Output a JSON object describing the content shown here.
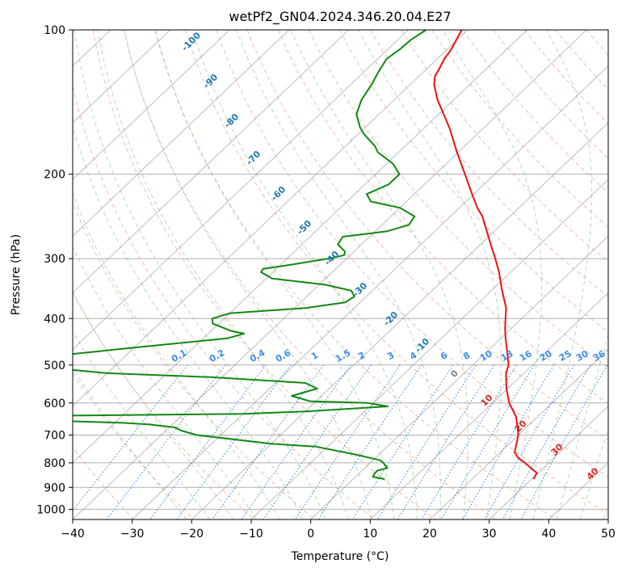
{
  "chart_data": {
    "type": "line",
    "title": "wetPf2_GN04.2024.346.20.04.E27",
    "xlabel": "Temperature (°C)",
    "ylabel": "Pressure (hPa)",
    "xlim": [
      -40,
      50
    ],
    "ylim": [
      1050,
      100
    ],
    "yscale": "log",
    "grid": true,
    "x_ticks": [
      -40,
      -30,
      -20,
      -10,
      0,
      10,
      20,
      30,
      40,
      50
    ],
    "y_ticks": [
      100,
      200,
      300,
      400,
      500,
      600,
      700,
      800,
      900,
      1000
    ],
    "dry_adiabat_labels": [
      "-100",
      "-90",
      "-80",
      "-70",
      "-60",
      "-50",
      "-40",
      "-30",
      "-20",
      "-10",
      "0",
      "10",
      "20",
      "30",
      "40"
    ],
    "mixing_ratio_labels": [
      "0.1",
      "0.2",
      "0.4",
      "0.6",
      "1",
      "1.5",
      "2",
      "3",
      "4",
      "6",
      "8",
      "10",
      "13",
      "16",
      "20",
      "25",
      "30",
      "36"
    ],
    "colors": {
      "temperature": "#ee1111",
      "dewpoint": "#118811",
      "dry_adiabat": "#f08060",
      "moist_adiabat": "#5aaa5a",
      "mixing_ratio": "#3a8ee6",
      "isotherm": "#777777",
      "label_cold": "#1f77b4",
      "label_zero": "#808080",
      "label_warm": "#d62728"
    },
    "series": [
      {
        "name": "temperature",
        "points": [
          {
            "p": 865,
            "t": 30.3
          },
          {
            "p": 840,
            "t": 29.8
          },
          {
            "p": 800,
            "t": 26.0
          },
          {
            "p": 780,
            "t": 23.9
          },
          {
            "p": 760,
            "t": 22.4
          },
          {
            "p": 700,
            "t": 20.0
          },
          {
            "p": 660,
            "t": 17.6
          },
          {
            "p": 640,
            "t": 16.3
          },
          {
            "p": 600,
            "t": 12.8
          },
          {
            "p": 560,
            "t": 9.8
          },
          {
            "p": 520,
            "t": 7.0
          },
          {
            "p": 500,
            "t": 6.0
          },
          {
            "p": 470,
            "t": 3.5
          },
          {
            "p": 440,
            "t": 0.8
          },
          {
            "p": 420,
            "t": -1.0
          },
          {
            "p": 400,
            "t": -2.7
          },
          {
            "p": 380,
            "t": -4.5
          },
          {
            "p": 350,
            "t": -8.2
          },
          {
            "p": 320,
            "t": -12.0
          },
          {
            "p": 300,
            "t": -15.0
          },
          {
            "p": 280,
            "t": -18.3
          },
          {
            "p": 260,
            "t": -21.8
          },
          {
            "p": 245,
            "t": -24.6
          },
          {
            "p": 235,
            "t": -27.0
          },
          {
            "p": 220,
            "t": -30.3
          },
          {
            "p": 200,
            "t": -35.0
          },
          {
            "p": 180,
            "t": -40.2
          },
          {
            "p": 160,
            "t": -45.8
          },
          {
            "p": 140,
            "t": -52.7
          },
          {
            "p": 130,
            "t": -56.0
          },
          {
            "p": 125,
            "t": -57.3
          },
          {
            "p": 120,
            "t": -58.0
          },
          {
            "p": 115,
            "t": -58.8
          },
          {
            "p": 110,
            "t": -59.3
          },
          {
            "p": 100,
            "t": -61.0
          }
        ]
      },
      {
        "name": "dewpoint",
        "points": [
          {
            "p": 865,
            "t": 5.3
          },
          {
            "p": 855,
            "t": 2.9
          },
          {
            "p": 840,
            "t": 2.6
          },
          {
            "p": 830,
            "t": 2.6
          },
          {
            "p": 820,
            "t": 3.8
          },
          {
            "p": 800,
            "t": 2.2
          },
          {
            "p": 790,
            "t": 1.2
          },
          {
            "p": 770,
            "t": -3.5
          },
          {
            "p": 740,
            "t": -12.0
          },
          {
            "p": 730,
            "t": -20.0
          },
          {
            "p": 700,
            "t": -34.0
          },
          {
            "p": 685,
            "t": -37.5
          },
          {
            "p": 675,
            "t": -39.0
          },
          {
            "p": 665,
            "t": -44.0
          },
          {
            "p": 660,
            "t": -49.0
          },
          {
            "p": 655,
            "t": -58.0
          },
          {
            "p": 650,
            "t": -70.0
          },
          {
            "p": 640,
            "t": -75.0
          },
          {
            "p": 636,
            "t": -50.0
          },
          {
            "p": 632,
            "t": -30.0
          },
          {
            "p": 625,
            "t": -20.0
          },
          {
            "p": 610,
            "t": -7.0
          },
          {
            "p": 600,
            "t": -11.0
          },
          {
            "p": 595,
            "t": -21.0
          },
          {
            "p": 580,
            "t": -25.0
          },
          {
            "p": 560,
            "t": -22.0
          },
          {
            "p": 545,
            "t": -25.0
          },
          {
            "p": 530,
            "t": -42.0
          },
          {
            "p": 520,
            "t": -60.0
          },
          {
            "p": 505,
            "t": -72.0
          },
          {
            "p": 480,
            "t": -73.0
          },
          {
            "p": 460,
            "t": -60.0
          },
          {
            "p": 440,
            "t": -46.0
          },
          {
            "p": 430,
            "t": -44.0
          },
          {
            "p": 425,
            "t": -46.5
          },
          {
            "p": 410,
            "t": -51.0
          },
          {
            "p": 400,
            "t": -52.0
          },
          {
            "p": 390,
            "t": -50.0
          },
          {
            "p": 380,
            "t": -38.0
          },
          {
            "p": 370,
            "t": -32.5
          },
          {
            "p": 360,
            "t": -32.0
          },
          {
            "p": 350,
            "t": -33.5
          },
          {
            "p": 340,
            "t": -39.0
          },
          {
            "p": 330,
            "t": -49.0
          },
          {
            "p": 320,
            "t": -52.0
          },
          {
            "p": 315,
            "t": -52.2
          },
          {
            "p": 310,
            "t": -49.0
          },
          {
            "p": 300,
            "t": -43.0
          },
          {
            "p": 295,
            "t": -41.0
          },
          {
            "p": 290,
            "t": -41.5
          },
          {
            "p": 280,
            "t": -44.0
          },
          {
            "p": 270,
            "t": -44.5
          },
          {
            "p": 263,
            "t": -38.0
          },
          {
            "p": 255,
            "t": -35.5
          },
          {
            "p": 245,
            "t": -36.0
          },
          {
            "p": 235,
            "t": -40.0
          },
          {
            "p": 228,
            "t": -46.0
          },
          {
            "p": 220,
            "t": -48.0
          },
          {
            "p": 210,
            "t": -46.0
          },
          {
            "p": 200,
            "t": -46.0
          },
          {
            "p": 190,
            "t": -49.0
          },
          {
            "p": 180,
            "t": -53.5
          },
          {
            "p": 175,
            "t": -55.0
          },
          {
            "p": 165,
            "t": -59.0
          },
          {
            "p": 160,
            "t": -60.8
          },
          {
            "p": 150,
            "t": -63.8
          },
          {
            "p": 140,
            "t": -65.5
          },
          {
            "p": 130,
            "t": -66.5
          },
          {
            "p": 123,
            "t": -67.5
          },
          {
            "p": 115,
            "t": -68.5
          },
          {
            "p": 110,
            "t": -68.0
          },
          {
            "p": 105,
            "t": -67.8
          },
          {
            "p": 100,
            "t": -67.0
          }
        ]
      }
    ]
  }
}
